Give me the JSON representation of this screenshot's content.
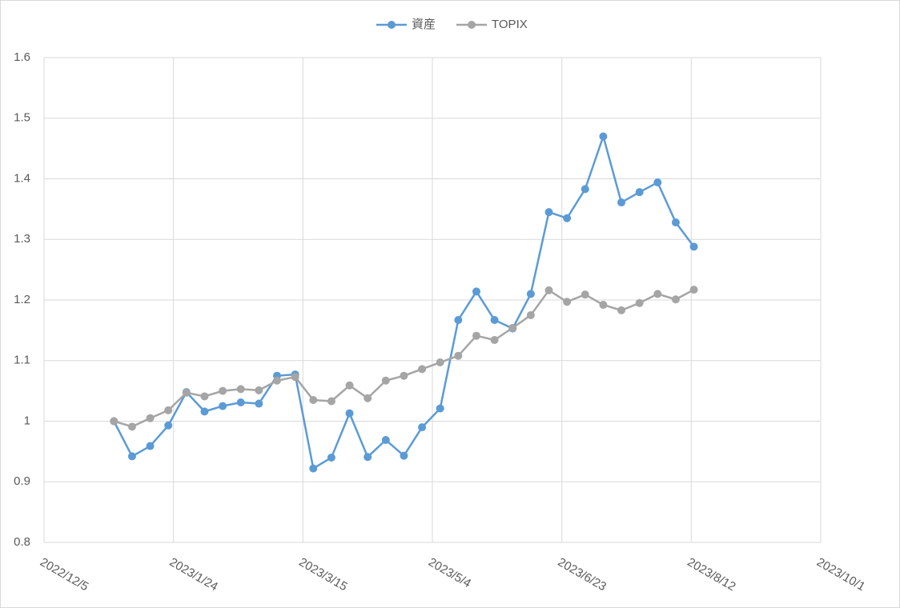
{
  "chart_data": {
    "type": "line",
    "x": [
      "2023/1/1",
      "2023/1/8",
      "2023/1/15",
      "2023/1/22",
      "2023/1/29",
      "2023/2/5",
      "2023/2/12",
      "2023/2/19",
      "2023/2/26",
      "2023/3/5",
      "2023/3/12",
      "2023/3/19",
      "2023/3/26",
      "2023/4/2",
      "2023/4/9",
      "2023/4/16",
      "2023/4/23",
      "2023/4/30",
      "2023/5/7",
      "2023/5/14",
      "2023/5/21",
      "2023/5/28",
      "2023/6/4",
      "2023/6/11",
      "2023/6/18",
      "2023/6/25",
      "2023/7/2",
      "2023/7/9",
      "2023/7/16",
      "2023/7/23",
      "2023/7/30",
      "2023/8/6",
      "2023/8/13"
    ],
    "series": [
      {
        "name": "資産",
        "color": "#5b9bd5",
        "values": [
          1.0,
          0.942,
          0.959,
          0.993,
          1.048,
          1.016,
          1.025,
          1.031,
          1.029,
          1.075,
          1.077,
          0.922,
          0.94,
          1.013,
          0.941,
          0.969,
          0.943,
          0.99,
          1.021,
          1.167,
          1.214,
          1.167,
          1.153,
          1.21,
          1.345,
          1.335,
          1.383,
          1.47,
          1.361,
          1.378,
          1.394,
          1.328,
          1.288
        ]
      },
      {
        "name": "TOPIX",
        "color": "#a5a5a5",
        "values": [
          1.0,
          0.991,
          1.005,
          1.018,
          1.047,
          1.041,
          1.05,
          1.053,
          1.051,
          1.067,
          1.073,
          1.035,
          1.033,
          1.059,
          1.038,
          1.067,
          1.075,
          1.086,
          1.097,
          1.108,
          1.141,
          1.134,
          1.154,
          1.175,
          1.216,
          1.197,
          1.209,
          1.192,
          1.183,
          1.195,
          1.21,
          1.201,
          1.217
        ]
      }
    ],
    "xlim": [
      "2022/12/5",
      "2023/10/1"
    ],
    "xticks": [
      "2022/12/5",
      "2023/1/24",
      "2023/3/15",
      "2023/5/4",
      "2023/6/23",
      "2023/8/12",
      "2023/10/1"
    ],
    "ylim": [
      0.8,
      1.6
    ],
    "yticks": [
      0.8,
      0.9,
      1,
      1.1,
      1.2,
      1.3,
      1.4,
      1.5,
      1.6
    ],
    "grid": true,
    "legend": "top"
  }
}
